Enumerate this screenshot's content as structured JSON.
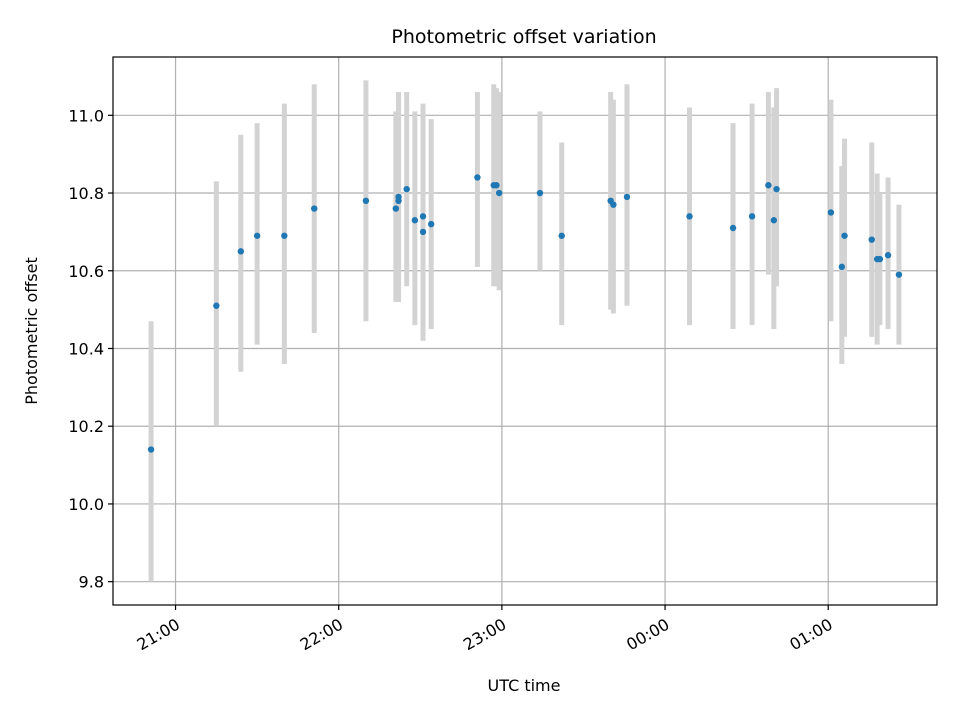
{
  "chart_data": {
    "type": "scatter",
    "title": "Photometric offset variation",
    "xlabel": "UTC time",
    "ylabel": "Photometric offset",
    "xlim": [
      "20:37",
      "01:40"
    ],
    "ylim": [
      9.74,
      11.15
    ],
    "grid": true,
    "x_ticks": [
      "21:00",
      "22:00",
      "23:00",
      "00:00",
      "01:00"
    ],
    "y_ticks": [
      9.8,
      10.0,
      10.2,
      10.4,
      10.6,
      10.8,
      11.0
    ],
    "y_tick_labels": [
      "9.8",
      "10.0",
      "10.2",
      "10.4",
      "10.6",
      "10.8",
      "11.0"
    ],
    "colors": {
      "marker": "#1f77b4",
      "errorbar": "#d3d3d3",
      "grid": "#b0b0b0"
    },
    "points": [
      {
        "x": "20:51",
        "y": 10.14,
        "ylow": 9.8,
        "yhigh": 10.47
      },
      {
        "x": "21:15",
        "y": 10.51,
        "ylow": 10.2,
        "yhigh": 10.83
      },
      {
        "x": "21:24",
        "y": 10.65,
        "ylow": 10.34,
        "yhigh": 10.95
      },
      {
        "x": "21:30",
        "y": 10.69,
        "ylow": 10.41,
        "yhigh": 10.98
      },
      {
        "x": "21:40",
        "y": 10.69,
        "ylow": 10.36,
        "yhigh": 11.03
      },
      {
        "x": "21:51",
        "y": 10.76,
        "ylow": 10.44,
        "yhigh": 11.08
      },
      {
        "x": "22:10",
        "y": 10.78,
        "ylow": 10.47,
        "yhigh": 11.09
      },
      {
        "x": "22:21",
        "y": 10.76,
        "ylow": 10.52,
        "yhigh": 11.01
      },
      {
        "x": "22:22",
        "y": 10.78,
        "ylow": 10.52,
        "yhigh": 11.06
      },
      {
        "x": "22:22",
        "y": 10.79,
        "ylow": 10.52,
        "yhigh": 11.06
      },
      {
        "x": "22:25",
        "y": 10.81,
        "ylow": 10.56,
        "yhigh": 11.06
      },
      {
        "x": "22:28",
        "y": 10.73,
        "ylow": 10.46,
        "yhigh": 11.01
      },
      {
        "x": "22:31",
        "y": 10.74,
        "ylow": 10.46,
        "yhigh": 11.03
      },
      {
        "x": "22:31",
        "y": 10.7,
        "ylow": 10.42,
        "yhigh": 10.98
      },
      {
        "x": "22:34",
        "y": 10.72,
        "ylow": 10.45,
        "yhigh": 10.99
      },
      {
        "x": "22:51",
        "y": 10.84,
        "ylow": 10.61,
        "yhigh": 11.06
      },
      {
        "x": "22:57",
        "y": 10.82,
        "ylow": 10.56,
        "yhigh": 11.08
      },
      {
        "x": "22:58",
        "y": 10.82,
        "ylow": 10.56,
        "yhigh": 11.07
      },
      {
        "x": "22:59",
        "y": 10.8,
        "ylow": 10.55,
        "yhigh": 11.06
      },
      {
        "x": "23:14",
        "y": 10.8,
        "ylow": 10.6,
        "yhigh": 11.01
      },
      {
        "x": "23:22",
        "y": 10.69,
        "ylow": 10.46,
        "yhigh": 10.93
      },
      {
        "x": "23:40",
        "y": 10.78,
        "ylow": 10.5,
        "yhigh": 11.06
      },
      {
        "x": "23:41",
        "y": 10.77,
        "ylow": 10.49,
        "yhigh": 11.04
      },
      {
        "x": "23:46",
        "y": 10.79,
        "ylow": 10.51,
        "yhigh": 11.08
      },
      {
        "x": "00:09",
        "y": 10.74,
        "ylow": 10.46,
        "yhigh": 11.02
      },
      {
        "x": "00:25",
        "y": 10.71,
        "ylow": 10.45,
        "yhigh": 10.98
      },
      {
        "x": "00:32",
        "y": 10.74,
        "ylow": 10.46,
        "yhigh": 11.03
      },
      {
        "x": "00:38",
        "y": 10.82,
        "ylow": 10.59,
        "yhigh": 11.06
      },
      {
        "x": "00:40",
        "y": 10.73,
        "ylow": 10.45,
        "yhigh": 11.02
      },
      {
        "x": "00:41",
        "y": 10.81,
        "ylow": 10.56,
        "yhigh": 11.07
      },
      {
        "x": "01:01",
        "y": 10.75,
        "ylow": 10.47,
        "yhigh": 11.04
      },
      {
        "x": "01:05",
        "y": 10.61,
        "ylow": 10.36,
        "yhigh": 10.87
      },
      {
        "x": "01:06",
        "y": 10.69,
        "ylow": 10.43,
        "yhigh": 10.94
      },
      {
        "x": "01:16",
        "y": 10.68,
        "ylow": 10.43,
        "yhigh": 10.93
      },
      {
        "x": "01:18",
        "y": 10.63,
        "ylow": 10.41,
        "yhigh": 10.85
      },
      {
        "x": "01:19",
        "y": 10.63,
        "ylow": 10.46,
        "yhigh": 10.8
      },
      {
        "x": "01:22",
        "y": 10.64,
        "ylow": 10.45,
        "yhigh": 10.84
      },
      {
        "x": "01:26",
        "y": 10.59,
        "ylow": 10.41,
        "yhigh": 10.77
      }
    ]
  }
}
